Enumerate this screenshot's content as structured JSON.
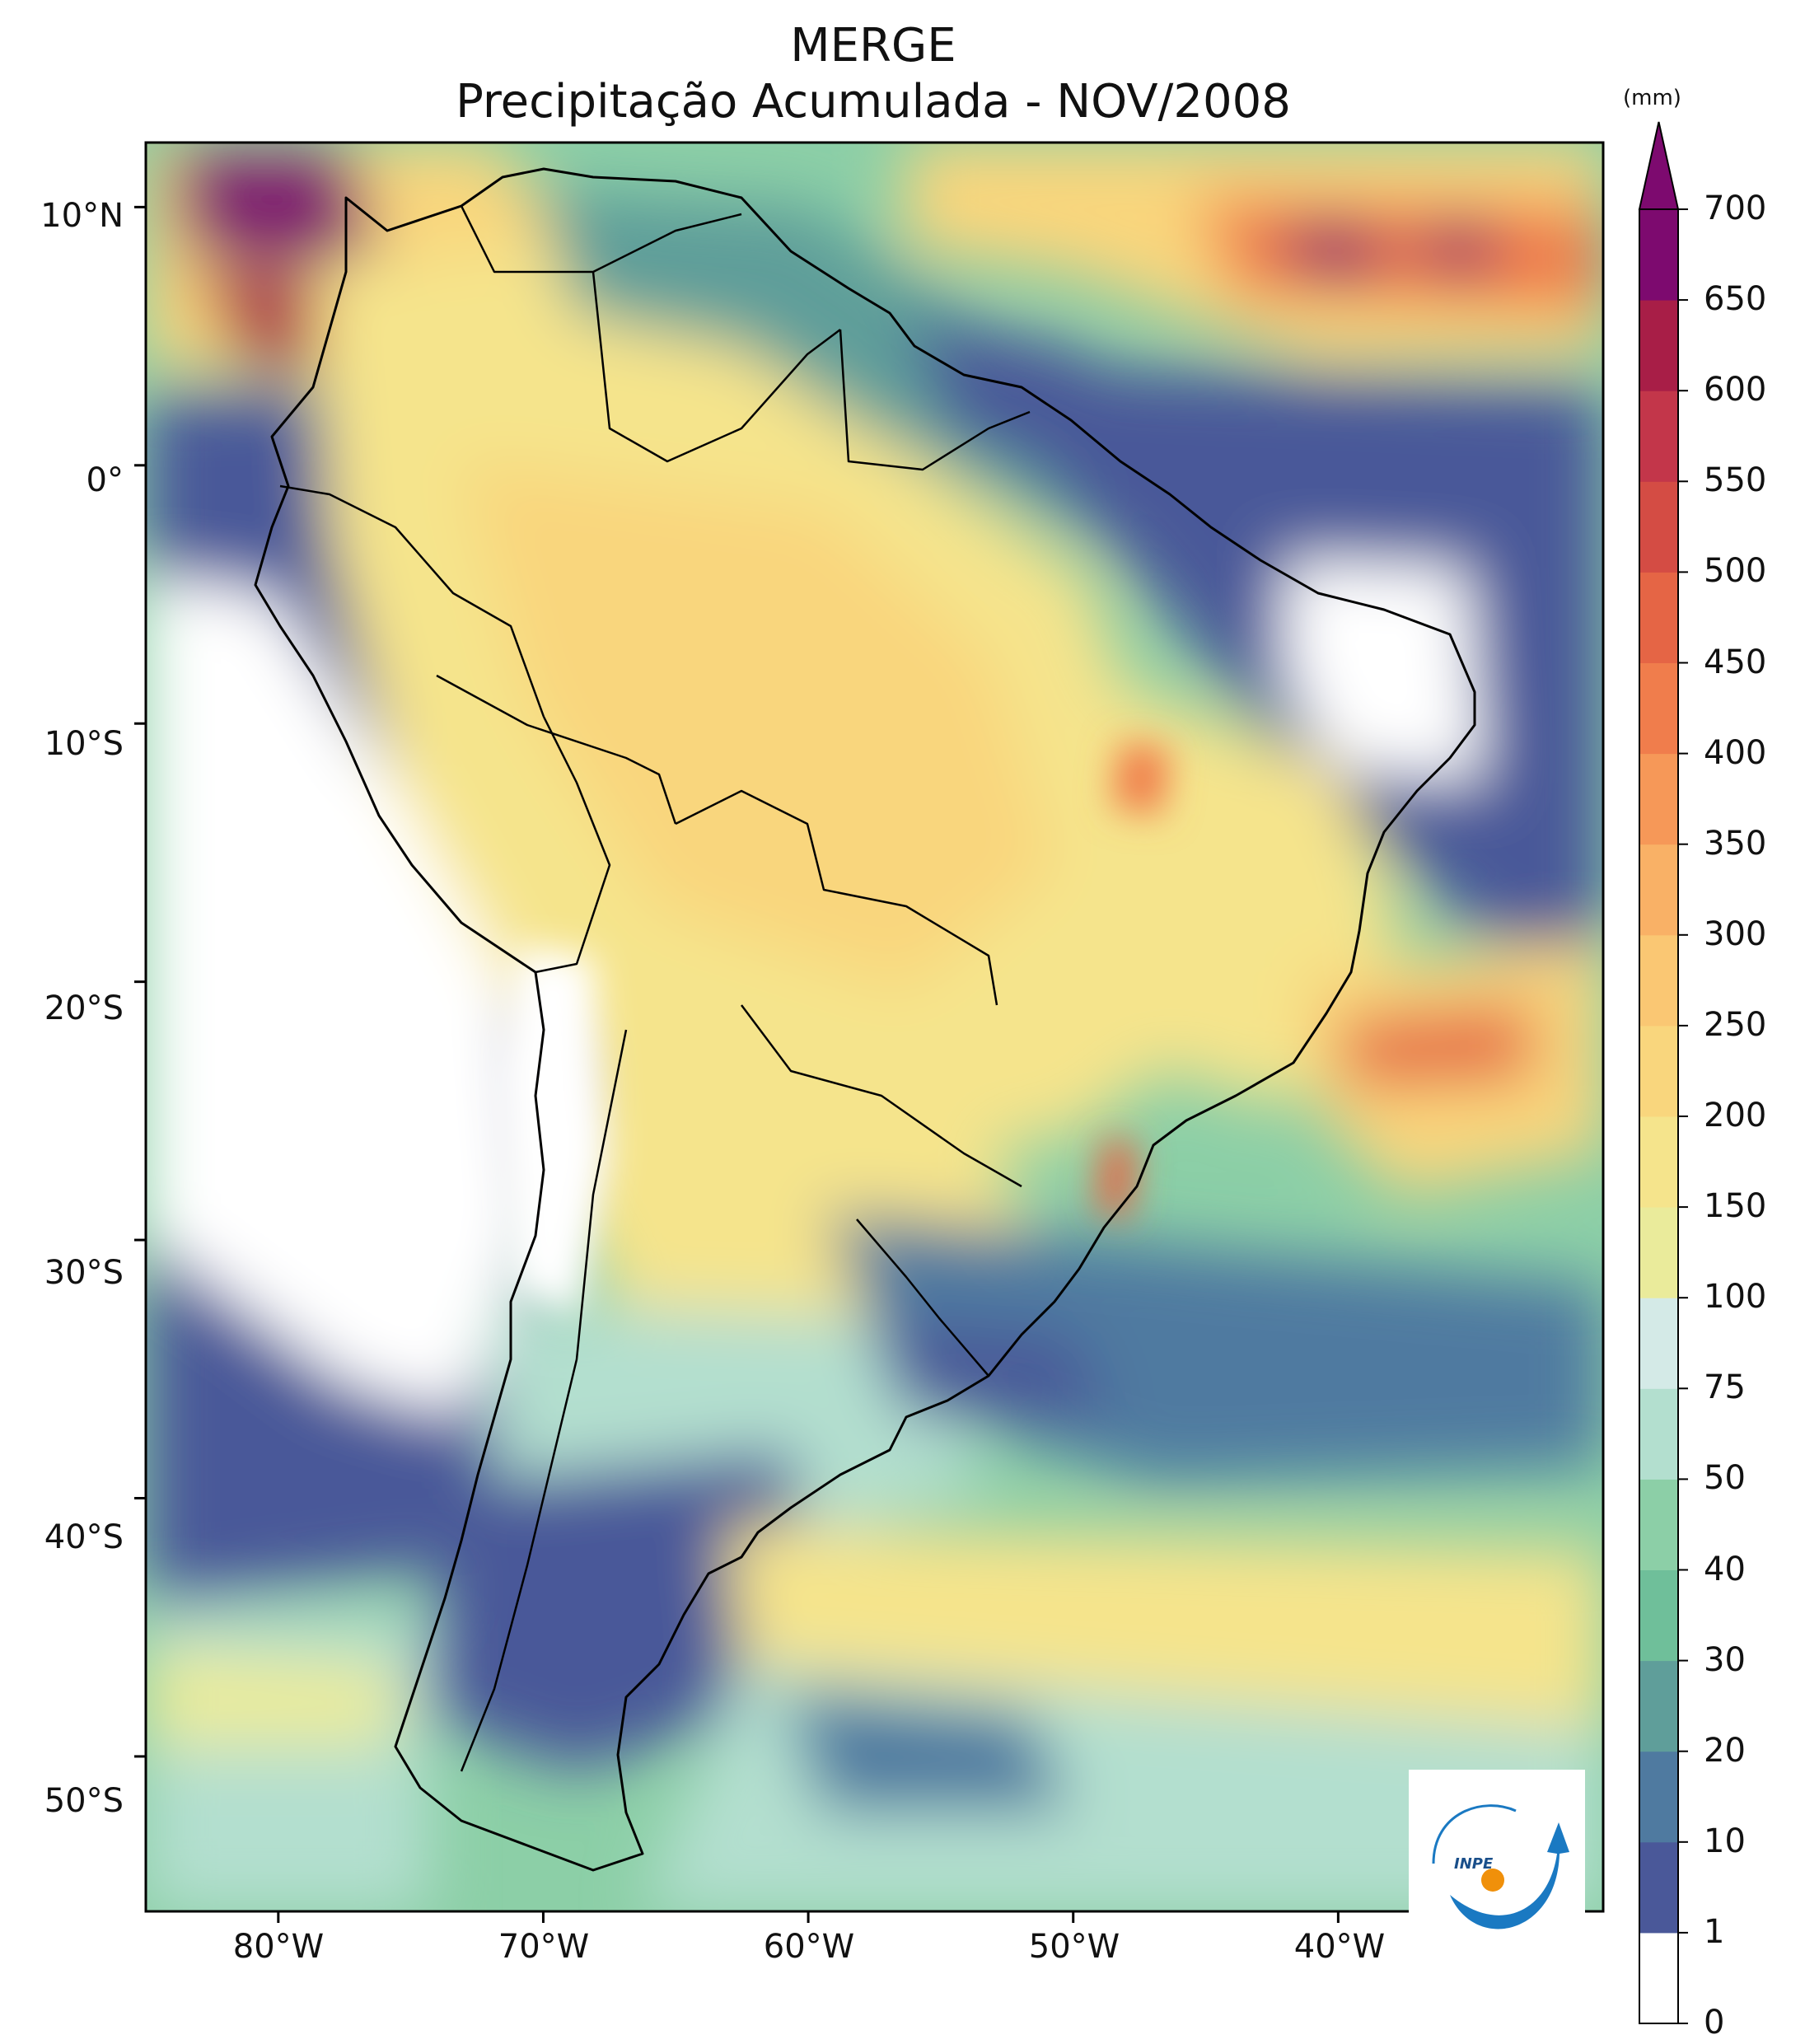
{
  "header": {
    "title_line1": "MERGE",
    "title_line2": "Precipitação Acumulada - NOV/2008"
  },
  "map": {
    "lon_range": [
      -85,
      -30
    ],
    "lat_range": [
      -56,
      12.5
    ],
    "lat_labels": [
      "10°N",
      "0°",
      "10°S",
      "20°S",
      "30°S",
      "40°S",
      "50°S"
    ],
    "lat_values": [
      10,
      0,
      -10,
      -20,
      -30,
      -40,
      -50
    ],
    "lon_labels": [
      "80°W",
      "70°W",
      "60°W",
      "50°W",
      "40°W"
    ],
    "lon_values": [
      -80,
      -70,
      -60,
      -50,
      -40
    ]
  },
  "colorbar": {
    "unit": "(mm)",
    "levels": [
      "0",
      "1",
      "10",
      "20",
      "30",
      "40",
      "50",
      "75",
      "100",
      "150",
      "200",
      "250",
      "300",
      "350",
      "400",
      "450",
      "500",
      "550",
      "600",
      "650",
      "700"
    ],
    "colors": [
      "#ffffff",
      "#4a5899",
      "#4f7aa0",
      "#5f9e9a",
      "#6fbf9a",
      "#8ccfa7",
      "#b3dfcf",
      "#d4eae7",
      "#eaeb9b",
      "#f5e48c",
      "#f9d67d",
      "#fac773",
      "#f9b166",
      "#f69858",
      "#f07d4c",
      "#e56545",
      "#d44c44",
      "#c3364a",
      "#a81e47",
      "#7d0a6f"
    ],
    "extend_color": "#7d0a6f"
  },
  "logo": {
    "text": "INPE",
    "colors": {
      "blue": "#1a79c2",
      "orange": "#f0900a"
    }
  }
}
